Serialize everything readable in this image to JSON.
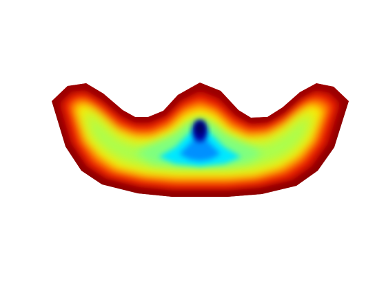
{
  "figure": {
    "background": "#ffffff",
    "colormap": "jet",
    "colormap_stops": [
      "#00007f",
      "#0000ff",
      "#007fff",
      "#00ffff",
      "#7fff7f",
      "#ffff00",
      "#ff7f00",
      "#ff0000",
      "#7f0000"
    ]
  }
}
